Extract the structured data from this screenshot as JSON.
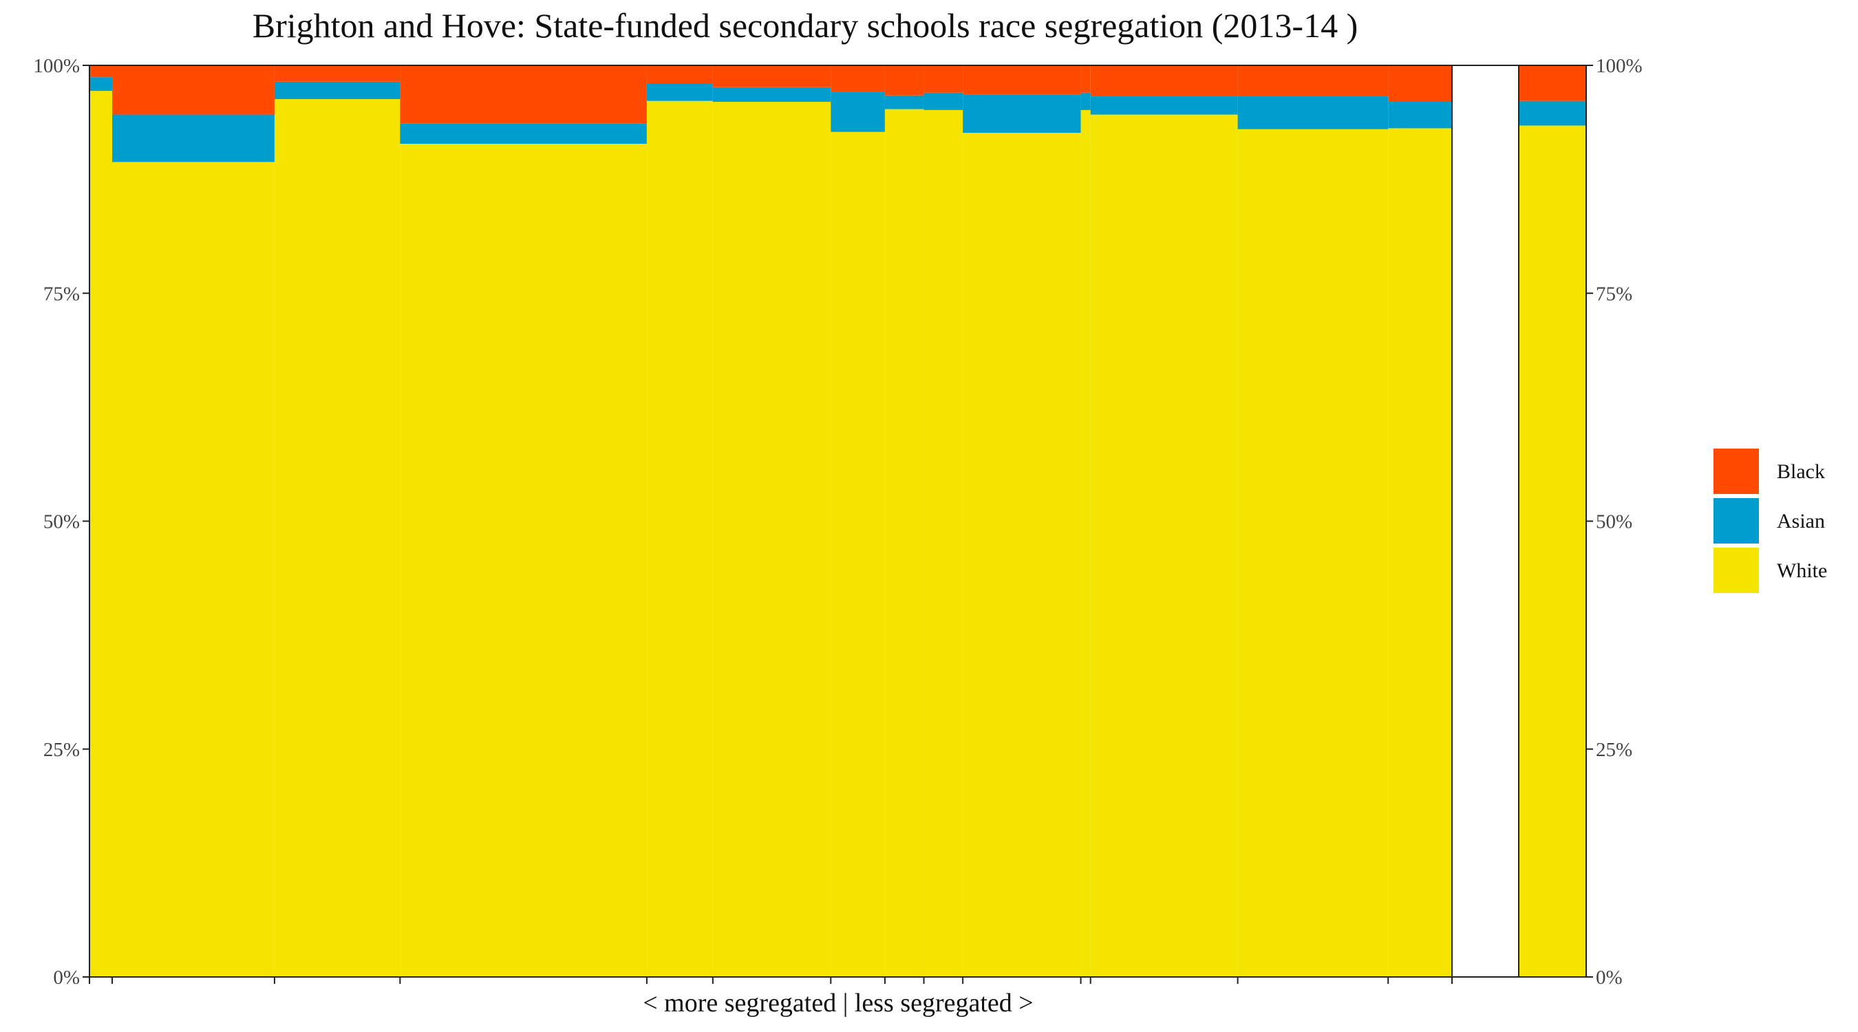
{
  "chart_data": {
    "type": "bar",
    "title": "Brighton and Hove: State-funded secondary schools race segregation (2013-14 )",
    "xlabel": "< more segregated | less segregated >",
    "ylabel": "",
    "ylim": [
      0,
      100
    ],
    "y_ticks": [
      "0%",
      "25%",
      "50%",
      "75%",
      "100%"
    ],
    "stack_order": [
      "White",
      "Asian",
      "Black"
    ],
    "colors": {
      "White": "#f5e400",
      "Asian": "#009ecf",
      "Black": "#ff4a00"
    },
    "legend": {
      "position": "right",
      "entries": [
        "Black",
        "Asian",
        "White"
      ]
    },
    "grid": false,
    "secondary_y_axis": true,
    "x_scale": "relative school size (variable-width bars)",
    "schools": [
      {
        "width": 2.1,
        "White": 97.2,
        "Asian": 1.5,
        "Black": 1.3
      },
      {
        "width": 15.0,
        "White": 89.4,
        "Asian": 5.2,
        "Black": 5.4
      },
      {
        "width": 11.6,
        "White": 96.3,
        "Asian": 1.9,
        "Black": 1.8
      },
      {
        "width": 22.8,
        "White": 91.4,
        "Asian": 2.2,
        "Black": 6.4
      },
      {
        "width": 6.1,
        "White": 96.1,
        "Asian": 1.9,
        "Black": 2.0
      },
      {
        "width": 10.9,
        "White": 96.0,
        "Asian": 1.6,
        "Black": 2.4
      },
      {
        "width": 5.0,
        "White": 92.7,
        "Asian": 4.4,
        "Black": 2.9
      },
      {
        "width": 3.6,
        "White": 95.2,
        "Asian": 1.5,
        "Black": 3.3
      },
      {
        "width": 3.6,
        "White": 95.1,
        "Asian": 1.9,
        "Black": 3.0
      },
      {
        "width": 10.9,
        "White": 92.6,
        "Asian": 4.2,
        "Black": 3.2
      },
      {
        "width": 0.9,
        "White": 95.1,
        "Asian": 1.9,
        "Black": 3.0
      },
      {
        "width": 13.6,
        "White": 94.6,
        "Asian": 2.0,
        "Black": 3.4
      },
      {
        "width": 13.9,
        "White": 93.0,
        "Asian": 3.6,
        "Black": 3.4
      },
      {
        "width": 5.9,
        "White": 93.1,
        "Asian": 2.9,
        "Black": 4.0
      }
    ],
    "summary_bar": {
      "White": 93.4,
      "Asian": 2.7,
      "Black": 3.9
    }
  }
}
